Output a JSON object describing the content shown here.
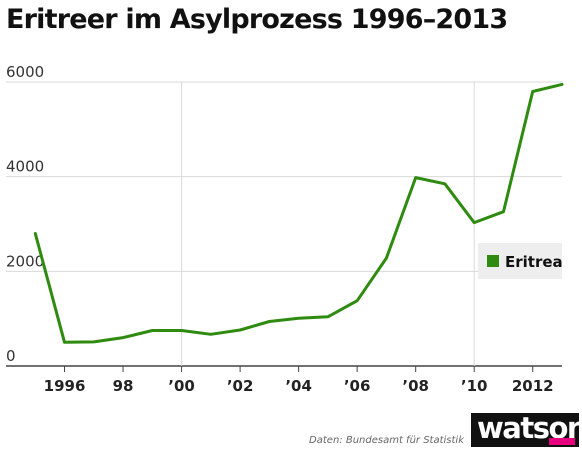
{
  "title": "Eritreer im Asylprozess 1996–2013",
  "source": "Daten: Bundesamt für Statistik",
  "logo": "watson",
  "colors": {
    "series": "#2e8b0f",
    "grid": "#d9d9d9",
    "axis": "#444444",
    "legend_bg": "#eeeeee",
    "logo_accent": "#e6007e"
  },
  "chart_data": {
    "type": "line",
    "title": "Eritreer im Asylprozess 1996–2013",
    "xlabel": "",
    "ylabel": "",
    "x": [
      1995,
      1996,
      1997,
      1998,
      1999,
      2000,
      2001,
      2002,
      2003,
      2004,
      2005,
      2006,
      2007,
      2008,
      2009,
      2010,
      2011,
      2012,
      2013
    ],
    "xlim": [
      1994,
      2013
    ],
    "ylim": [
      0,
      6000
    ],
    "yticks": [
      0,
      2000,
      4000,
      6000
    ],
    "ytick_labels": [
      "0",
      "2000",
      "4000",
      "6000"
    ],
    "xticks": [
      1996,
      1998,
      2000,
      2002,
      2004,
      2006,
      2008,
      2010,
      2012
    ],
    "xtick_labels": [
      "1996",
      "98",
      "’00",
      "’02",
      "’04",
      "’06",
      "’08",
      "’10",
      "2012"
    ],
    "xgrid_at": [
      2000,
      2010
    ],
    "series": [
      {
        "name": "Eritrea",
        "values": [
          2800,
          500,
          510,
          600,
          750,
          750,
          670,
          760,
          940,
          1010,
          1040,
          1380,
          2280,
          3980,
          3850,
          3030,
          3260,
          5800,
          5950
        ]
      }
    ],
    "legend": "right",
    "grid": true
  }
}
